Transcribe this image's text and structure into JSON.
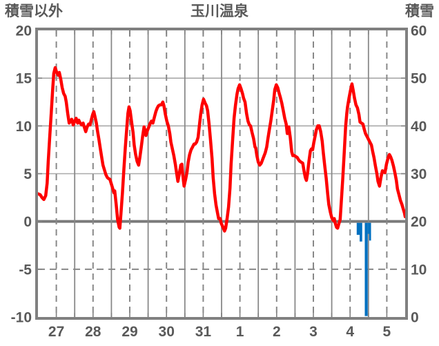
{
  "header": {
    "left_axis_title": "積雪以外",
    "chart_title": "玉川温泉",
    "right_axis_title": "積雪"
  },
  "chart_data": {
    "type": "line",
    "title": "玉川温泉",
    "grid": "on",
    "legend_position": "none",
    "left_axis": {
      "title": "積雪以外",
      "min": -10,
      "max": 20,
      "ticks": [
        20,
        15,
        10,
        5,
        0,
        -5,
        -10
      ]
    },
    "right_axis": {
      "title": "積雪",
      "min": 0,
      "max": 60,
      "ticks": [
        60,
        50,
        40,
        30,
        20,
        10,
        0
      ]
    },
    "x_axis": {
      "labels": [
        "27",
        "28",
        "29",
        "30",
        "31",
        "1",
        "2",
        "3",
        "4",
        "5"
      ],
      "unit": "day",
      "gridline_solid": "midnight",
      "gridline_dashed": "noon"
    },
    "colors": {
      "temperature_line": "#fe0000",
      "snow_bar": "#0070c0",
      "grid_major": "#888888",
      "grid_light": "#a9a9a9",
      "zero_line": "#7a7a7a",
      "border": "#808080",
      "text": "#595959"
    },
    "series": [
      {
        "name": "積雪以外",
        "type": "line",
        "axis": "left",
        "color": "#fe0000",
        "points": [
          [
            0.0,
            2.9
          ],
          [
            0.06,
            2.8
          ],
          [
            0.11,
            2.5
          ],
          [
            0.16,
            2.3
          ],
          [
            0.21,
            2.7
          ],
          [
            0.25,
            4.0
          ],
          [
            0.28,
            6.3
          ],
          [
            0.32,
            8.8
          ],
          [
            0.36,
            11.3
          ],
          [
            0.4,
            13.8
          ],
          [
            0.43,
            15.5
          ],
          [
            0.47,
            16.1
          ],
          [
            0.51,
            15.6
          ],
          [
            0.55,
            15.3
          ],
          [
            0.58,
            15.6
          ],
          [
            0.62,
            14.9
          ],
          [
            0.66,
            14.0
          ],
          [
            0.7,
            13.4
          ],
          [
            0.74,
            13.1
          ],
          [
            0.77,
            12.5
          ],
          [
            0.81,
            11.3
          ],
          [
            0.85,
            10.3
          ],
          [
            0.89,
            10.5
          ],
          [
            0.92,
            10.7
          ],
          [
            0.96,
            10.1
          ],
          [
            1.0,
            10.5
          ],
          [
            1.04,
            10.8
          ],
          [
            1.08,
            10.3
          ],
          [
            1.11,
            10.6
          ],
          [
            1.15,
            10.3
          ],
          [
            1.19,
            10.1
          ],
          [
            1.23,
            10.3
          ],
          [
            1.26,
            9.9
          ],
          [
            1.3,
            9.4
          ],
          [
            1.34,
            9.9
          ],
          [
            1.38,
            10.2
          ],
          [
            1.42,
            10.1
          ],
          [
            1.45,
            10.6
          ],
          [
            1.49,
            11.2
          ],
          [
            1.52,
            11.5
          ],
          [
            1.55,
            11.0
          ],
          [
            1.59,
            10.3
          ],
          [
            1.62,
            9.5
          ],
          [
            1.66,
            8.6
          ],
          [
            1.7,
            7.6
          ],
          [
            1.74,
            6.6
          ],
          [
            1.77,
            5.9
          ],
          [
            1.81,
            5.4
          ],
          [
            1.85,
            4.9
          ],
          [
            1.89,
            4.6
          ],
          [
            1.92,
            4.5
          ],
          [
            1.96,
            4.4
          ],
          [
            2.0,
            3.9
          ],
          [
            2.04,
            3.4
          ],
          [
            2.07,
            3.0
          ],
          [
            2.09,
            3.2
          ],
          [
            2.13,
            1.8
          ],
          [
            2.17,
            0.2
          ],
          [
            2.21,
            -0.6
          ],
          [
            2.23,
            -0.7
          ],
          [
            2.26,
            0.8
          ],
          [
            2.3,
            3.0
          ],
          [
            2.34,
            5.5
          ],
          [
            2.38,
            7.8
          ],
          [
            2.42,
            9.8
          ],
          [
            2.45,
            11.3
          ],
          [
            2.48,
            12.0
          ],
          [
            2.51,
            11.6
          ],
          [
            2.55,
            10.4
          ],
          [
            2.59,
            9.3
          ],
          [
            2.62,
            8.0
          ],
          [
            2.66,
            7.0
          ],
          [
            2.7,
            6.3
          ],
          [
            2.74,
            5.9
          ],
          [
            2.77,
            6.6
          ],
          [
            2.81,
            7.7
          ],
          [
            2.85,
            8.9
          ],
          [
            2.89,
            9.9
          ],
          [
            2.92,
            9.5
          ],
          [
            2.94,
            9.0
          ],
          [
            2.98,
            9.5
          ],
          [
            3.02,
            9.9
          ],
          [
            3.06,
            10.3
          ],
          [
            3.09,
            10.5
          ],
          [
            3.13,
            10.3
          ],
          [
            3.17,
            10.9
          ],
          [
            3.21,
            11.5
          ],
          [
            3.25,
            11.9
          ],
          [
            3.28,
            12.1
          ],
          [
            3.32,
            12.2
          ],
          [
            3.36,
            12.2
          ],
          [
            3.4,
            12.5
          ],
          [
            3.43,
            12.1
          ],
          [
            3.47,
            11.2
          ],
          [
            3.51,
            10.5
          ],
          [
            3.55,
            10.0
          ],
          [
            3.59,
            9.2
          ],
          [
            3.62,
            8.3
          ],
          [
            3.66,
            7.6
          ],
          [
            3.7,
            6.9
          ],
          [
            3.74,
            6.0
          ],
          [
            3.77,
            5.2
          ],
          [
            3.81,
            4.2
          ],
          [
            3.85,
            5.0
          ],
          [
            3.89,
            5.9
          ],
          [
            3.92,
            6.0
          ],
          [
            3.94,
            5.0
          ],
          [
            3.98,
            3.7
          ],
          [
            4.02,
            4.4
          ],
          [
            4.06,
            5.2
          ],
          [
            4.09,
            6.2
          ],
          [
            4.13,
            7.0
          ],
          [
            4.17,
            7.5
          ],
          [
            4.21,
            7.8
          ],
          [
            4.25,
            8.1
          ],
          [
            4.28,
            8.1
          ],
          [
            4.32,
            8.3
          ],
          [
            4.36,
            8.8
          ],
          [
            4.4,
            10.2
          ],
          [
            4.43,
            11.2
          ],
          [
            4.47,
            12.2
          ],
          [
            4.51,
            12.8
          ],
          [
            4.55,
            12.4
          ],
          [
            4.59,
            12.1
          ],
          [
            4.62,
            11.6
          ],
          [
            4.66,
            10.2
          ],
          [
            4.7,
            8.5
          ],
          [
            4.74,
            6.6
          ],
          [
            4.77,
            4.6
          ],
          [
            4.81,
            2.9
          ],
          [
            4.85,
            1.7
          ],
          [
            4.89,
            0.9
          ],
          [
            4.92,
            0.3
          ],
          [
            4.96,
            0.3
          ],
          [
            4.99,
            -0.2
          ],
          [
            5.04,
            -0.6
          ],
          [
            5.08,
            -1.0
          ],
          [
            5.11,
            -0.7
          ],
          [
            5.15,
            0.3
          ],
          [
            5.19,
            1.5
          ],
          [
            5.23,
            3.5
          ],
          [
            5.26,
            6.0
          ],
          [
            5.3,
            8.5
          ],
          [
            5.34,
            10.8
          ],
          [
            5.38,
            12.2
          ],
          [
            5.42,
            13.3
          ],
          [
            5.45,
            13.9
          ],
          [
            5.49,
            14.3
          ],
          [
            5.53,
            13.9
          ],
          [
            5.57,
            13.4
          ],
          [
            5.6,
            12.9
          ],
          [
            5.64,
            12.5
          ],
          [
            5.68,
            11.3
          ],
          [
            5.72,
            10.5
          ],
          [
            5.76,
            10.1
          ],
          [
            5.79,
            10.0
          ],
          [
            5.83,
            9.3
          ],
          [
            5.87,
            8.7
          ],
          [
            5.91,
            7.8
          ],
          [
            5.93,
            7.7
          ],
          [
            5.96,
            6.9
          ],
          [
            6.0,
            6.2
          ],
          [
            6.04,
            5.9
          ],
          [
            6.08,
            6.1
          ],
          [
            6.11,
            6.4
          ],
          [
            6.15,
            6.8
          ],
          [
            6.19,
            7.2
          ],
          [
            6.23,
            7.8
          ],
          [
            6.26,
            8.6
          ],
          [
            6.3,
            9.6
          ],
          [
            6.34,
            10.5
          ],
          [
            6.38,
            11.6
          ],
          [
            6.42,
            12.7
          ],
          [
            6.45,
            13.8
          ],
          [
            6.49,
            14.3
          ],
          [
            6.53,
            14.0
          ],
          [
            6.57,
            13.4
          ],
          [
            6.6,
            13.0
          ],
          [
            6.64,
            12.4
          ],
          [
            6.68,
            11.6
          ],
          [
            6.72,
            10.8
          ],
          [
            6.76,
            10.2
          ],
          [
            6.79,
            9.2
          ],
          [
            6.83,
            9.9
          ],
          [
            6.87,
            8.8
          ],
          [
            6.91,
            7.3
          ],
          [
            6.94,
            6.9
          ],
          [
            6.98,
            6.9
          ],
          [
            7.02,
            6.8
          ],
          [
            7.06,
            6.7
          ],
          [
            7.09,
            6.5
          ],
          [
            7.13,
            6.3
          ],
          [
            7.17,
            6.2
          ],
          [
            7.21,
            6.1
          ],
          [
            7.25,
            5.2
          ],
          [
            7.28,
            4.6
          ],
          [
            7.31,
            4.3
          ],
          [
            7.34,
            5.0
          ],
          [
            7.38,
            6.3
          ],
          [
            7.42,
            7.4
          ],
          [
            7.45,
            7.6
          ],
          [
            7.48,
            7.5
          ],
          [
            7.51,
            8.2
          ],
          [
            7.55,
            9.0
          ],
          [
            7.58,
            9.6
          ],
          [
            7.62,
            10.0
          ],
          [
            7.66,
            10.0
          ],
          [
            7.7,
            9.4
          ],
          [
            7.74,
            8.4
          ],
          [
            7.77,
            7.2
          ],
          [
            7.81,
            5.8
          ],
          [
            7.85,
            4.5
          ],
          [
            7.89,
            2.9
          ],
          [
            7.92,
            1.8
          ],
          [
            7.96,
            1.0
          ],
          [
            8.0,
            0.4
          ],
          [
            8.04,
            0.1
          ],
          [
            8.07,
            0.3
          ],
          [
            8.09,
            -0.1
          ],
          [
            8.13,
            -0.6
          ],
          [
            8.16,
            -0.7
          ],
          [
            8.19,
            -0.3
          ],
          [
            8.23,
            0.2
          ],
          [
            8.26,
            2.0
          ],
          [
            8.3,
            4.5
          ],
          [
            8.34,
            7.2
          ],
          [
            8.38,
            10.0
          ],
          [
            8.41,
            11.3
          ],
          [
            8.43,
            12.0
          ],
          [
            8.47,
            12.9
          ],
          [
            8.51,
            13.7
          ],
          [
            8.55,
            14.4
          ],
          [
            8.58,
            13.8
          ],
          [
            8.62,
            12.9
          ],
          [
            8.66,
            12.2
          ],
          [
            8.7,
            11.9
          ],
          [
            8.74,
            11.2
          ],
          [
            8.77,
            10.4
          ],
          [
            8.81,
            10.3
          ],
          [
            8.85,
            10.2
          ],
          [
            8.89,
            9.6
          ],
          [
            8.92,
            9.2
          ],
          [
            8.96,
            8.9
          ],
          [
            9.0,
            8.6
          ],
          [
            9.04,
            8.3
          ],
          [
            9.08,
            8.0
          ],
          [
            9.11,
            7.4
          ],
          [
            9.15,
            6.7
          ],
          [
            9.19,
            5.8
          ],
          [
            9.23,
            5.0
          ],
          [
            9.26,
            4.2
          ],
          [
            9.3,
            3.7
          ],
          [
            9.34,
            4.6
          ],
          [
            9.38,
            5.3
          ],
          [
            9.42,
            5.2
          ],
          [
            9.45,
            5.1
          ],
          [
            9.49,
            6.0
          ],
          [
            9.53,
            6.6
          ],
          [
            9.57,
            7.0
          ],
          [
            9.6,
            6.8
          ],
          [
            9.64,
            6.4
          ],
          [
            9.68,
            5.8
          ],
          [
            9.72,
            5.1
          ],
          [
            9.76,
            4.3
          ],
          [
            9.79,
            3.4
          ],
          [
            9.83,
            2.8
          ],
          [
            9.87,
            2.2
          ],
          [
            9.91,
            1.8
          ],
          [
            9.94,
            1.4
          ],
          [
            9.98,
            0.9
          ],
          [
            10.0,
            0.5
          ]
        ]
      },
      {
        "name": "積雪",
        "type": "bar",
        "axis": "left",
        "color": "#0070c0",
        "bars": [
          {
            "t0": 8.68,
            "t1": 8.76,
            "left_value": -1.4,
            "right_value": 17.2
          },
          {
            "t0": 8.76,
            "t1": 8.83,
            "left_value": -2.1,
            "right_value": 15.8
          },
          {
            "t0": 8.9,
            "t1": 8.98,
            "left_value": -9.9,
            "right_value": 0.2
          },
          {
            "t0": 8.98,
            "t1": 9.02,
            "left_value": -1.3,
            "right_value": 17.4
          },
          {
            "t0": 9.02,
            "t1": 9.07,
            "left_value": -2.0,
            "right_value": 16.0
          }
        ]
      }
    ]
  }
}
